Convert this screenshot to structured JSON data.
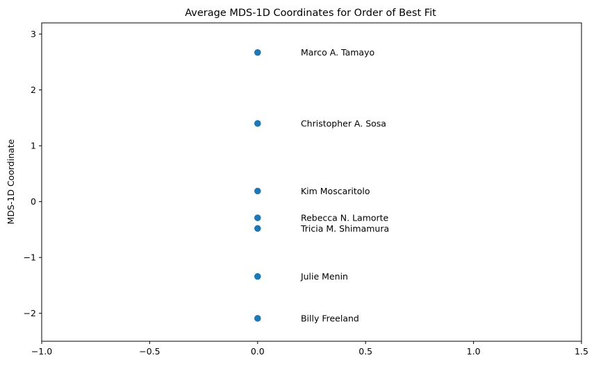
{
  "chart_data": {
    "type": "scatter",
    "title": "Average MDS-1D Coordinates for Order of Best Fit",
    "xlabel": "",
    "ylabel": "MDS-1D Coordinate",
    "xlim": [
      -1.0,
      1.5
    ],
    "ylim": [
      -2.5,
      3.2
    ],
    "xticks": [
      -1.0,
      -0.5,
      0.0,
      0.5,
      1.0,
      1.5
    ],
    "xtick_labels": [
      "−1.0",
      "−0.5",
      "0.0",
      "0.5",
      "1.0",
      "1.5"
    ],
    "yticks": [
      -2,
      -1,
      0,
      1,
      2,
      3
    ],
    "ytick_labels": [
      "−2",
      "−1",
      "0",
      "1",
      "2",
      "3"
    ],
    "grid": false,
    "marker_color": "#1f77b4",
    "label_x_offset": 0.2,
    "points": [
      {
        "label": "Marco A. Tamayo",
        "x": 0.0,
        "y": 2.67
      },
      {
        "label": "Christopher  A. Sosa",
        "x": 0.0,
        "y": 1.4
      },
      {
        "label": "Kim Moscaritolo",
        "x": 0.0,
        "y": 0.19
      },
      {
        "label": "Rebecca N. Lamorte",
        "x": 0.0,
        "y": -0.29
      },
      {
        "label": "Tricia M. Shimamura",
        "x": 0.0,
        "y": -0.48
      },
      {
        "label": "Julie Menin",
        "x": 0.0,
        "y": -1.34
      },
      {
        "label": "Billy Freeland",
        "x": 0.0,
        "y": -2.09
      }
    ]
  }
}
